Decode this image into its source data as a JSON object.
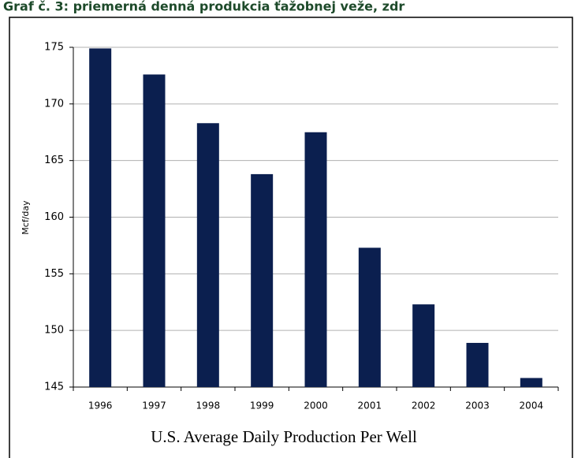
{
  "header": {
    "caption": "Graf č. 3: priemerná denná produkcia ťažobnej veže, zdr"
  },
  "chart_data": {
    "type": "bar",
    "title": "U.S. Average Daily Production Per Well",
    "y_label": "Mcf/day",
    "categories": [
      "1996",
      "1997",
      "1998",
      "1999",
      "2000",
      "2001",
      "2002",
      "2003",
      "2004"
    ],
    "values": [
      174.9,
      172.6,
      168.3,
      163.8,
      167.5,
      157.3,
      152.3,
      148.9,
      145.8
    ],
    "color": "#0b1f4f",
    "ylim": [
      145,
      175
    ],
    "yticks": [
      145,
      150,
      155,
      160,
      165,
      170,
      175
    ],
    "grid": true
  }
}
